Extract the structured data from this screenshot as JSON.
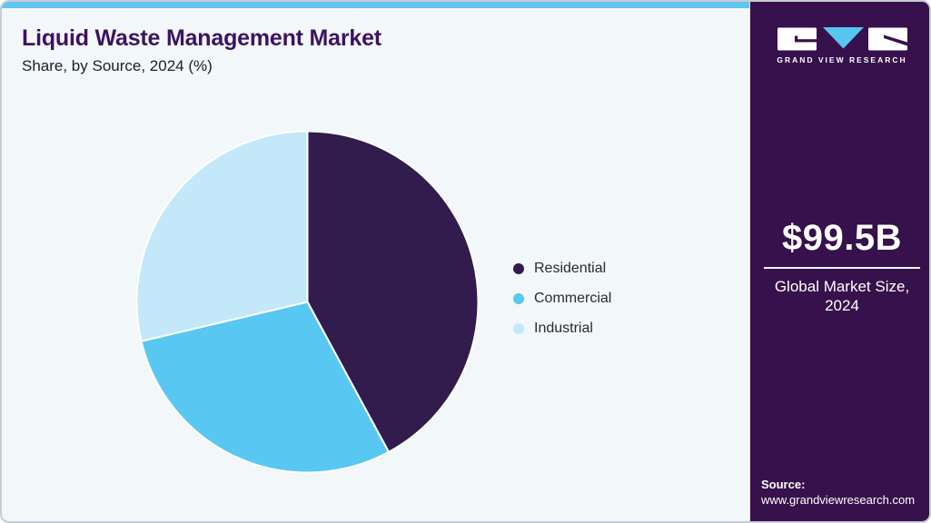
{
  "header": {
    "title": "Liquid Waste Management Market",
    "subtitle": "Share, by Source, 2024 (%)"
  },
  "chart_data": {
    "type": "pie",
    "title": "Liquid Waste Management Market Share, by Source, 2024 (%)",
    "start_angle_deg": 0,
    "legend_position": "right",
    "segments": [
      {
        "label": "Residential",
        "value": 42.1,
        "color": "#321b4d"
      },
      {
        "label": "Commercial",
        "value": 29.2,
        "color": "#58c8f3"
      },
      {
        "label": "Industrial",
        "value": 28.7,
        "color": "#c2e8f9"
      }
    ]
  },
  "sidebar": {
    "brand": "GRAND VIEW RESEARCH",
    "market_size": {
      "value": "$99.5B",
      "label_line1": "Global Market Size,",
      "label_line2": "2024"
    },
    "source": {
      "label": "Source:",
      "url": "www.grandviewresearch.com"
    }
  },
  "colors": {
    "accent_bar": "#5fc6ef",
    "background": "#f2f7fa",
    "card_border": "#c6ccd3",
    "sidebar_bg": "#37114b",
    "title_text": "#3c1361",
    "logo_triangle": "#56c5f0",
    "white": "#ffffff"
  }
}
